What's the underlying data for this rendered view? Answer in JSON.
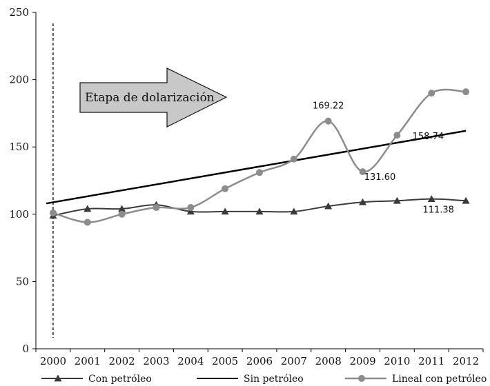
{
  "chart_data": {
    "type": "line",
    "x": [
      "2000",
      "2001",
      "2002",
      "2003",
      "2004",
      "2005",
      "2006",
      "2007",
      "2008",
      "2009",
      "2010",
      "2011",
      "2012"
    ],
    "ylim": [
      0,
      250
    ],
    "yticks": [
      "0",
      "50",
      "100",
      "150",
      "200",
      "250"
    ],
    "grid": false,
    "legend_position": "bottom",
    "series": [
      {
        "name": "Con petróleo",
        "marker": "triangle",
        "color": "#3a3a3a",
        "values": [
          99,
          104,
          104,
          107,
          102,
          102,
          102,
          102,
          106,
          109,
          110,
          111.38,
          110
        ]
      },
      {
        "name": "Sin petróleo",
        "marker": "none",
        "color": "#000000",
        "values": [
          108,
          null,
          null,
          null,
          null,
          null,
          null,
          null,
          null,
          null,
          null,
          null,
          162
        ]
      },
      {
        "name": "Lineal con petróleo",
        "marker": "circle",
        "color": "#8c8c8c",
        "values": [
          101,
          94,
          100,
          105,
          105,
          119,
          131,
          141,
          169.22,
          131.6,
          158.74,
          190,
          191
        ]
      }
    ],
    "annotations": {
      "phase_label": "Etapa de dolarización",
      "phase_start": "2000",
      "data_labels": [
        {
          "text": "169.22",
          "x": "2008",
          "y": 169.22
        },
        {
          "text": "131.60",
          "x": "2009",
          "y": 131.6
        },
        {
          "text": "158.74",
          "x": "2010",
          "y": 158.74
        },
        {
          "text": "111.38",
          "x": "2011",
          "y": 111.38
        }
      ]
    }
  }
}
